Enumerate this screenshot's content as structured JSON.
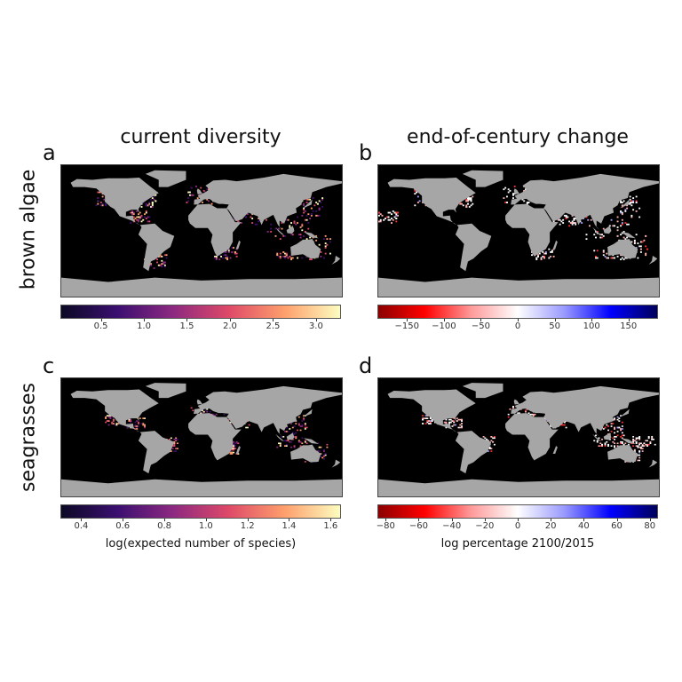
{
  "columns": {
    "left_title": "current diversity",
    "right_title": "end-of-century change"
  },
  "rows": {
    "top_label": "brown algae",
    "bottom_label": "seagrasses"
  },
  "chart_data": [
    {
      "panel": "a",
      "type": "heatmap",
      "map": "world",
      "ocean_color": "#000000",
      "land_color": "#a6a6a6",
      "colormap": "magma",
      "colorbar": {
        "range": [
          0.03,
          3.29
        ],
        "ticks": [
          "0.5",
          "1.0",
          "1.5",
          "2.0",
          "2.5",
          "3.0"
        ],
        "tick_values": [
          0.5,
          1.0,
          1.5,
          2.0,
          2.5,
          3.0
        ],
        "label": ""
      }
    },
    {
      "panel": "b",
      "type": "heatmap",
      "map": "world",
      "ocean_color": "#000000",
      "land_color": "#a6a6a6",
      "colormap": "seismic_r",
      "colorbar": {
        "range": [
          -190,
          190
        ],
        "ticks": [
          "−150",
          "−100",
          "−50",
          "0",
          "50",
          "100",
          "150"
        ],
        "tick_values": [
          -150,
          -100,
          -50,
          0,
          50,
          100,
          150
        ],
        "label": ""
      }
    },
    {
      "panel": "c",
      "type": "heatmap",
      "map": "world",
      "ocean_color": "#000000",
      "land_color": "#a6a6a6",
      "colormap": "magma",
      "colorbar": {
        "range": [
          0.3,
          1.65
        ],
        "ticks": [
          "0.4",
          "0.6",
          "0.8",
          "1.0",
          "1.2",
          "1.4",
          "1.6"
        ],
        "tick_values": [
          0.4,
          0.6,
          0.8,
          1.0,
          1.2,
          1.4,
          1.6
        ],
        "label": "log(expected number of species)"
      }
    },
    {
      "panel": "d",
      "type": "heatmap",
      "map": "world",
      "ocean_color": "#000000",
      "land_color": "#a6a6a6",
      "colormap": "seismic_r",
      "colorbar": {
        "range": [
          -85,
          85
        ],
        "ticks": [
          "−80",
          "−60",
          "−40",
          "−20",
          "0",
          "20",
          "40",
          "60",
          "80"
        ],
        "tick_values": [
          -80,
          -60,
          -40,
          -20,
          0,
          20,
          40,
          60,
          80
        ],
        "label": "log percentage 2100/2015"
      }
    }
  ]
}
